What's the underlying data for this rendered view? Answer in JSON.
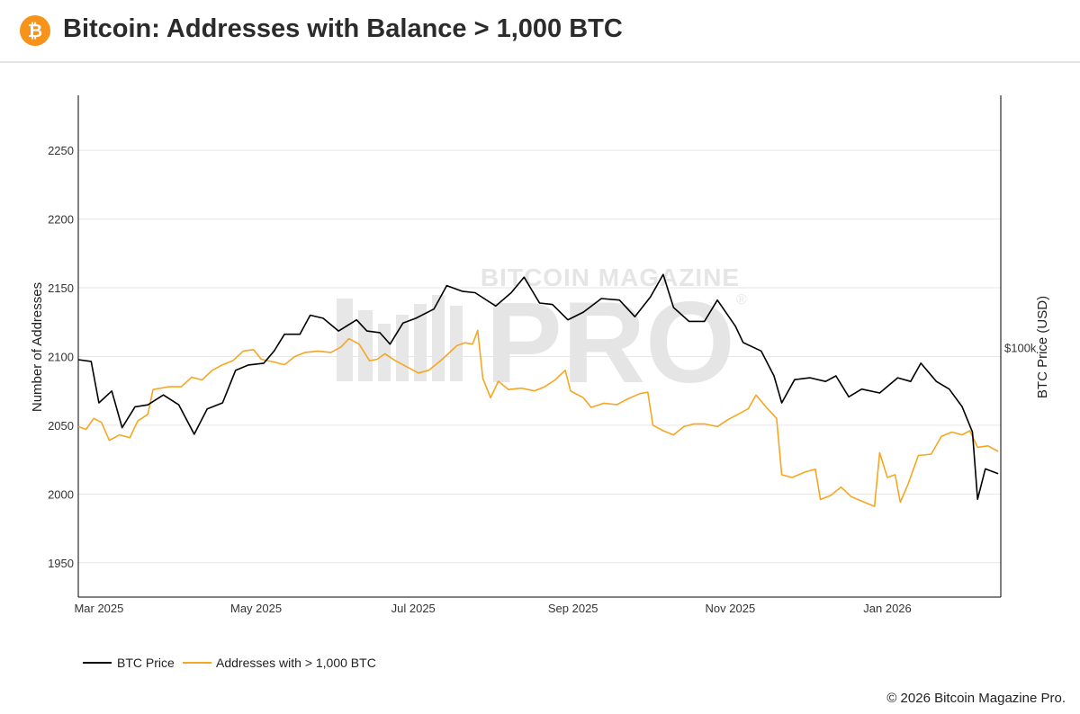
{
  "header": {
    "logo_glyph": "₿",
    "logo_icon": "bitcoin-logo-icon",
    "title": "Bitcoin: Addresses with Balance > 1,000 BTC"
  },
  "watermark": {
    "line1": "BITCOIN MAGAZINE",
    "line2": "PRO",
    "registered": "®"
  },
  "footer": {
    "copyright": "© 2026 Bitcoin Magazine Pro."
  },
  "colors": {
    "btc_price": "#000000",
    "addresses": "#f5a623",
    "grid": "#e6e6e6",
    "watermark": "#d0d0d0",
    "brand": "#f7931a"
  },
  "chart_data": {
    "type": "line",
    "title": "Bitcoin: Addresses with Balance > 1,000 BTC",
    "ylabel": "Number of Addresses",
    "y2label": "BTC Price (USD)",
    "ylim": [
      1925,
      2290
    ],
    "yticks": [
      1950,
      2000,
      2050,
      2100,
      2150,
      2200,
      2250
    ],
    "y2_tick_labels": [
      {
        "label": "$100k",
        "value": 100000
      }
    ],
    "y2_scale": "log",
    "y2lim": [
      48000,
      210000
    ],
    "xlim": [
      "2025-02-21",
      "2026-02-14"
    ],
    "xticks": [
      {
        "label": "Mar 2025",
        "date": "2025-03-01"
      },
      {
        "label": "May 2025",
        "date": "2025-05-01"
      },
      {
        "label": "Jul 2025",
        "date": "2025-07-01"
      },
      {
        "label": "Sep 2025",
        "date": "2025-09-01"
      },
      {
        "label": "Nov 2025",
        "date": "2025-11-01"
      },
      {
        "label": "Jan 2026",
        "date": "2026-01-01"
      }
    ],
    "grid": true,
    "legend_position": "bottom-left",
    "series": [
      {
        "name": "BTC Price",
        "axis": "right",
        "color": "#000000",
        "points": [
          [
            "2025-02-21",
            96500
          ],
          [
            "2025-02-26",
            96000
          ],
          [
            "2025-03-01",
            85000
          ],
          [
            "2025-03-06",
            88000
          ],
          [
            "2025-03-10",
            79000
          ],
          [
            "2025-03-15",
            84000
          ],
          [
            "2025-03-20",
            84500
          ],
          [
            "2025-03-26",
            87000
          ],
          [
            "2025-04-01",
            84500
          ],
          [
            "2025-04-07",
            77500
          ],
          [
            "2025-04-12",
            83500
          ],
          [
            "2025-04-18",
            85000
          ],
          [
            "2025-04-23",
            93500
          ],
          [
            "2025-04-28",
            95000
          ],
          [
            "2025-05-04",
            95500
          ],
          [
            "2025-05-08",
            99000
          ],
          [
            "2025-05-12",
            104000
          ],
          [
            "2025-05-18",
            104000
          ],
          [
            "2025-05-22",
            110000
          ],
          [
            "2025-05-27",
            109000
          ],
          [
            "2025-06-02",
            105000
          ],
          [
            "2025-06-09",
            108500
          ],
          [
            "2025-06-13",
            105000
          ],
          [
            "2025-06-18",
            104500
          ],
          [
            "2025-06-22",
            101000
          ],
          [
            "2025-06-27",
            107500
          ],
          [
            "2025-07-02",
            109000
          ],
          [
            "2025-07-09",
            112000
          ],
          [
            "2025-07-14",
            120000
          ],
          [
            "2025-07-20",
            118000
          ],
          [
            "2025-07-25",
            117500
          ],
          [
            "2025-08-02",
            113000
          ],
          [
            "2025-08-08",
            117500
          ],
          [
            "2025-08-13",
            123000
          ],
          [
            "2025-08-19",
            114000
          ],
          [
            "2025-08-24",
            113500
          ],
          [
            "2025-08-30",
            108500
          ],
          [
            "2025-09-05",
            111000
          ],
          [
            "2025-09-12",
            115500
          ],
          [
            "2025-09-19",
            115000
          ],
          [
            "2025-09-25",
            109500
          ],
          [
            "2025-10-01",
            116000
          ],
          [
            "2025-10-06",
            124000
          ],
          [
            "2025-10-10",
            112500
          ],
          [
            "2025-10-16",
            108000
          ],
          [
            "2025-10-22",
            108000
          ],
          [
            "2025-10-27",
            115000
          ],
          [
            "2025-11-03",
            106500
          ],
          [
            "2025-11-06",
            101500
          ],
          [
            "2025-11-13",
            99000
          ],
          [
            "2025-11-18",
            92000
          ],
          [
            "2025-11-21",
            85000
          ],
          [
            "2025-11-26",
            91000
          ],
          [
            "2025-12-02",
            91500
          ],
          [
            "2025-12-08",
            90500
          ],
          [
            "2025-12-12",
            92000
          ],
          [
            "2025-12-17",
            86500
          ],
          [
            "2025-12-22",
            88500
          ],
          [
            "2025-12-29",
            87500
          ],
          [
            "2026-01-05",
            91500
          ],
          [
            "2026-01-10",
            90500
          ],
          [
            "2026-01-14",
            95500
          ],
          [
            "2026-01-20",
            90500
          ],
          [
            "2026-01-25",
            88500
          ],
          [
            "2026-01-30",
            84000
          ],
          [
            "2026-02-03",
            78000
          ],
          [
            "2026-02-05",
            64000
          ],
          [
            "2026-02-08",
            70000
          ],
          [
            "2026-02-13",
            69000
          ]
        ]
      },
      {
        "name": "Addresses with > 1,000 BTC",
        "axis": "left",
        "color": "#f5a623",
        "points": [
          [
            "2025-02-21",
            2049
          ],
          [
            "2025-02-24",
            2047
          ],
          [
            "2025-02-27",
            2055
          ],
          [
            "2025-03-02",
            2052
          ],
          [
            "2025-03-05",
            2039
          ],
          [
            "2025-03-09",
            2043
          ],
          [
            "2025-03-13",
            2041
          ],
          [
            "2025-03-16",
            2053
          ],
          [
            "2025-03-20",
            2058
          ],
          [
            "2025-03-22",
            2076
          ],
          [
            "2025-03-28",
            2078
          ],
          [
            "2025-04-02",
            2078
          ],
          [
            "2025-04-06",
            2085
          ],
          [
            "2025-04-10",
            2083
          ],
          [
            "2025-04-14",
            2090
          ],
          [
            "2025-04-18",
            2094
          ],
          [
            "2025-04-22",
            2097
          ],
          [
            "2025-04-26",
            2104
          ],
          [
            "2025-04-30",
            2105
          ],
          [
            "2025-05-03",
            2098
          ],
          [
            "2025-05-08",
            2096
          ],
          [
            "2025-05-12",
            2094
          ],
          [
            "2025-05-16",
            2100
          ],
          [
            "2025-05-20",
            2103
          ],
          [
            "2025-05-25",
            2104
          ],
          [
            "2025-05-30",
            2103
          ],
          [
            "2025-06-03",
            2107
          ],
          [
            "2025-06-06",
            2113
          ],
          [
            "2025-06-10",
            2109
          ],
          [
            "2025-06-14",
            2097
          ],
          [
            "2025-06-17",
            2098
          ],
          [
            "2025-06-20",
            2102
          ],
          [
            "2025-06-24",
            2097
          ],
          [
            "2025-06-29",
            2092
          ],
          [
            "2025-07-03",
            2088
          ],
          [
            "2025-07-07",
            2090
          ],
          [
            "2025-07-11",
            2096
          ],
          [
            "2025-07-14",
            2101
          ],
          [
            "2025-07-18",
            2108
          ],
          [
            "2025-07-21",
            2110
          ],
          [
            "2025-07-24",
            2109
          ],
          [
            "2025-07-26",
            2119
          ],
          [
            "2025-07-28",
            2084
          ],
          [
            "2025-07-31",
            2070
          ],
          [
            "2025-08-03",
            2082
          ],
          [
            "2025-08-07",
            2076
          ],
          [
            "2025-08-12",
            2077
          ],
          [
            "2025-08-17",
            2075
          ],
          [
            "2025-08-21",
            2078
          ],
          [
            "2025-08-25",
            2083
          ],
          [
            "2025-08-29",
            2090
          ],
          [
            "2025-08-31",
            2075
          ],
          [
            "2025-09-05",
            2070
          ],
          [
            "2025-09-08",
            2063
          ],
          [
            "2025-09-13",
            2066
          ],
          [
            "2025-09-18",
            2065
          ],
          [
            "2025-09-22",
            2069
          ],
          [
            "2025-09-27",
            2073
          ],
          [
            "2025-09-30",
            2074
          ],
          [
            "2025-10-02",
            2050
          ],
          [
            "2025-10-06",
            2046
          ],
          [
            "2025-10-10",
            2043
          ],
          [
            "2025-10-14",
            2049
          ],
          [
            "2025-10-18",
            2051
          ],
          [
            "2025-10-22",
            2051
          ],
          [
            "2025-10-27",
            2049
          ],
          [
            "2025-10-31",
            2054
          ],
          [
            "2025-11-04",
            2058
          ],
          [
            "2025-11-08",
            2062
          ],
          [
            "2025-11-11",
            2072
          ],
          [
            "2025-11-15",
            2063
          ],
          [
            "2025-11-19",
            2055
          ],
          [
            "2025-11-21",
            2014
          ],
          [
            "2025-11-25",
            2012
          ],
          [
            "2025-11-30",
            2016
          ],
          [
            "2025-12-04",
            2018
          ],
          [
            "2025-12-06",
            1996
          ],
          [
            "2025-12-10",
            1999
          ],
          [
            "2025-12-14",
            2005
          ],
          [
            "2025-12-18",
            1998
          ],
          [
            "2025-12-23",
            1994
          ],
          [
            "2025-12-27",
            1991
          ],
          [
            "2025-12-29",
            2030
          ],
          [
            "2026-01-01",
            2012
          ],
          [
            "2026-01-04",
            2014
          ],
          [
            "2026-01-06",
            1994
          ],
          [
            "2026-01-09",
            2007
          ],
          [
            "2026-01-13",
            2028
          ],
          [
            "2026-01-18",
            2029
          ],
          [
            "2026-01-22",
            2042
          ],
          [
            "2026-01-26",
            2045
          ],
          [
            "2026-01-30",
            2043
          ],
          [
            "2026-02-02",
            2046
          ],
          [
            "2026-02-05",
            2034
          ],
          [
            "2026-02-09",
            2035
          ],
          [
            "2026-02-13",
            2031
          ]
        ]
      }
    ]
  }
}
